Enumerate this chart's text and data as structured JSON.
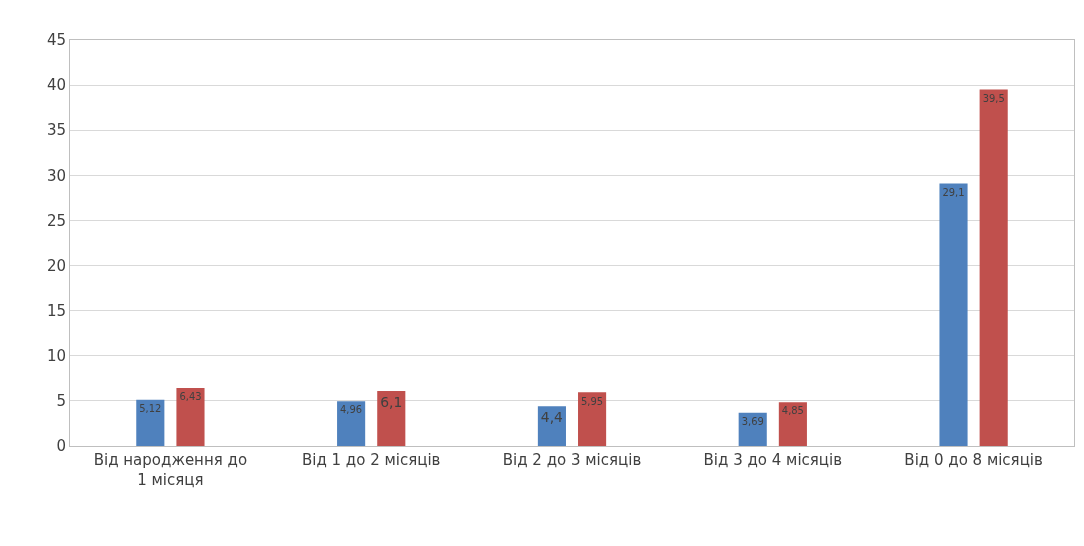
{
  "chart_data": {
    "type": "bar",
    "categories": [
      "Від народження до 1 місяця",
      "Від 1 до 2 місяців",
      "Від 2 до 3 місяців",
      "Від 3 до 4 місяців",
      "Від 0 до 8 місяців"
    ],
    "series": [
      {
        "color": "#4f81bd",
        "values": [
          5.12,
          4.96,
          4.4,
          3.69,
          29.1
        ],
        "value_labels": [
          "5,12",
          "4,96",
          "4,4",
          "3,69",
          "29,1"
        ]
      },
      {
        "color": "#c0504d",
        "values": [
          6.43,
          6.1,
          5.95,
          4.85,
          39.5
        ],
        "value_labels": [
          "6,43",
          "6,1",
          "5,95",
          "4,85",
          "39,5"
        ]
      }
    ],
    "ylim": [
      0,
      45
    ],
    "yticks": [
      0,
      5,
      10,
      15,
      20,
      25,
      30,
      35,
      40,
      45
    ],
    "grid": "y",
    "legend": false
  }
}
